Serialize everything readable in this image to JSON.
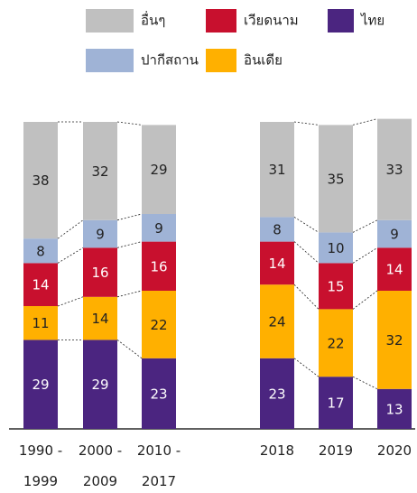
{
  "chart_data": {
    "type": "bar",
    "stacked": true,
    "categories": [
      "1990 - 1999",
      "2000 - 2009",
      "2010 - 2017",
      "2018",
      "2019",
      "2020"
    ],
    "series": [
      {
        "name": "ไทย",
        "color": "#4b2580",
        "values": [
          29,
          29,
          23,
          23,
          17,
          13
        ]
      },
      {
        "name": "อินเดีย",
        "color": "#ffb000",
        "values": [
          11,
          14,
          22,
          24,
          22,
          32
        ]
      },
      {
        "name": "เวียดนาม",
        "color": "#c8102e",
        "values": [
          14,
          16,
          16,
          14,
          15,
          14
        ]
      },
      {
        "name": "ปากีสถาน",
        "color": "#9fb3d6",
        "values": [
          8,
          9,
          9,
          8,
          10,
          9
        ]
      },
      {
        "name": "อื่นๆ",
        "color": "#c0c0c0",
        "values": [
          38,
          32,
          29,
          31,
          35,
          33
        ]
      }
    ],
    "ylim": [
      0,
      100
    ]
  }
}
